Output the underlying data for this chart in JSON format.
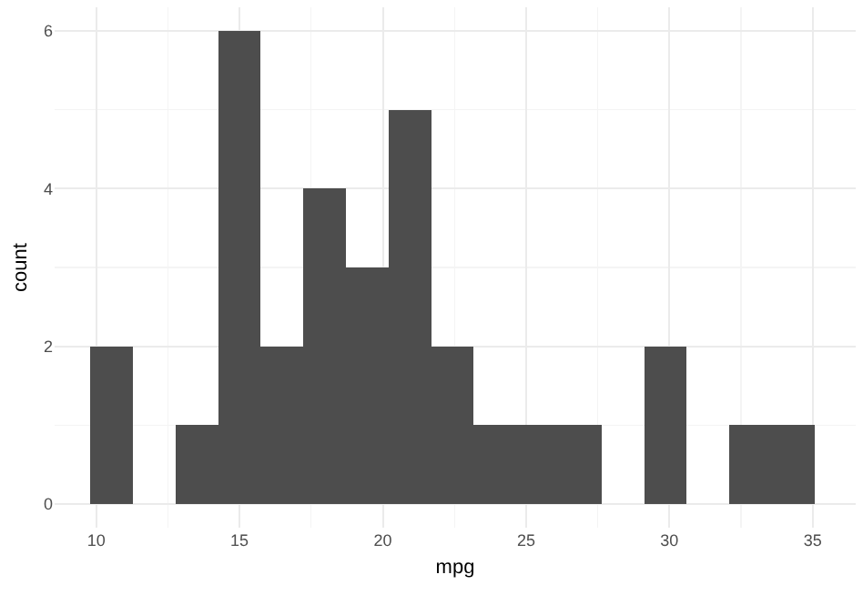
{
  "chart_data": {
    "type": "histogram",
    "xlabel": "mpg",
    "ylabel": "count",
    "bins": [
      9.8,
      11.29,
      12.77,
      14.26,
      15.74,
      17.23,
      18.72,
      20.2,
      21.69,
      23.17,
      24.66,
      26.15,
      27.63,
      29.12,
      30.6,
      32.09,
      33.58,
      35.06
    ],
    "values": [
      2,
      0,
      1,
      6,
      2,
      4,
      3,
      5,
      2,
      1,
      1,
      1,
      0,
      2,
      0,
      1,
      1
    ],
    "color": "#4d4d4d",
    "xlim": [
      8.55,
      36.5
    ],
    "xticks": [
      10,
      15,
      20,
      25,
      30,
      35
    ],
    "ylim": [
      -0.3,
      6.3
    ],
    "yticks": [
      0,
      2,
      4,
      6
    ],
    "grid": true
  }
}
